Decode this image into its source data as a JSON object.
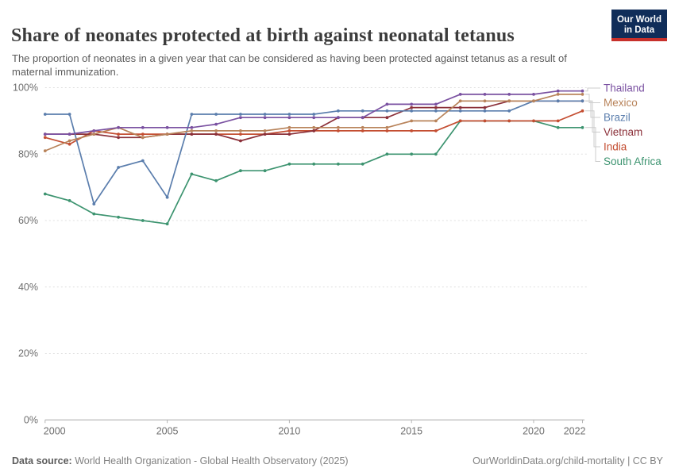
{
  "header": {
    "title": "Share of neonates protected at birth against neonatal tetanus",
    "subtitle": "The proportion of neonates in a given year that can be considered as having been protected against tetanus as a result of maternal immunization.",
    "logo": {
      "line1": "Our World",
      "line2": "in Data",
      "bg_color": "#102D59",
      "accent_color": "#C7302B"
    }
  },
  "chart_data": {
    "type": "line",
    "x": [
      2000,
      2001,
      2002,
      2003,
      2004,
      2005,
      2006,
      2007,
      2008,
      2009,
      2010,
      2011,
      2012,
      2013,
      2014,
      2015,
      2016,
      2017,
      2018,
      2019,
      2020,
      2021,
      2022
    ],
    "series": [
      {
        "name": "Thailand",
        "color": "#7A51A1",
        "values": [
          86,
          86,
          87,
          88,
          88,
          88,
          88,
          89,
          91,
          91,
          91,
          91,
          91,
          91,
          95,
          95,
          95,
          98,
          98,
          98,
          98,
          99,
          99
        ]
      },
      {
        "name": "Mexico",
        "color": "#B8835A",
        "values": [
          81,
          84,
          86,
          88,
          85,
          86,
          87,
          87,
          87,
          87,
          88,
          88,
          88,
          88,
          88,
          90,
          90,
          96,
          96,
          96,
          96,
          98,
          98
        ]
      },
      {
        "name": "Brazil",
        "color": "#5B7EAD",
        "values": [
          92,
          92,
          65,
          76,
          78,
          67,
          92,
          92,
          92,
          92,
          92,
          92,
          93,
          93,
          93,
          93,
          93,
          93,
          93,
          93,
          96,
          96,
          96
        ]
      },
      {
        "name": "Vietnam",
        "color": "#8B3039",
        "values": [
          86,
          86,
          86,
          85,
          85,
          86,
          86,
          86,
          84,
          86,
          86,
          87,
          91,
          91,
          91,
          94,
          94,
          94,
          94,
          96,
          96,
          96,
          96
        ]
      },
      {
        "name": "India",
        "color": "#C44E32",
        "values": [
          85,
          83,
          87,
          86,
          86,
          86,
          86,
          86,
          86,
          86,
          87,
          87,
          87,
          87,
          87,
          87,
          87,
          90,
          90,
          90,
          90,
          90,
          93
        ]
      },
      {
        "name": "South Africa",
        "color": "#3D9470",
        "values": [
          68,
          66,
          62,
          61,
          60,
          59,
          74,
          72,
          75,
          75,
          77,
          77,
          77,
          77,
          80,
          80,
          80,
          90,
          90,
          90,
          90,
          88,
          88
        ]
      }
    ],
    "title": "Share of neonates protected at birth against neonatal tetanus",
    "xlabel": "",
    "ylabel": "",
    "ylim": [
      0,
      100
    ],
    "yticks": [
      0,
      20,
      40,
      60,
      80,
      100
    ],
    "ytick_suffix": "%",
    "xticks": [
      2000,
      2005,
      2010,
      2015,
      2020,
      2022
    ],
    "grid": "horizontal-dashed",
    "legend_position": "right"
  },
  "footer": {
    "source_label": "Data source:",
    "source_text": " World Health Organization - Global Health Observatory (2025)",
    "link_text": "OurWorldinData.org/child-mortality | CC BY"
  }
}
